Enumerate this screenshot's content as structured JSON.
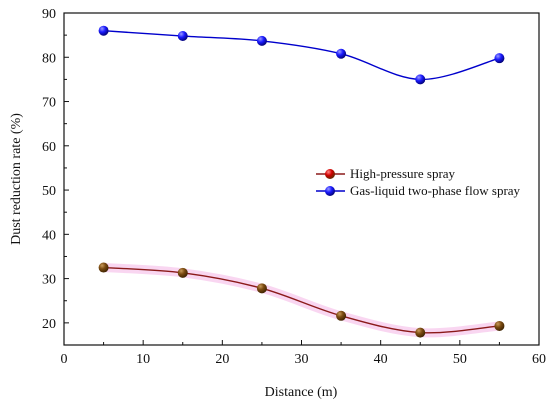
{
  "chart_data": {
    "type": "line",
    "xlabel": "Distance (m)",
    "ylabel": "Dust reduction rate (%)",
    "xlim": [
      0,
      60
    ],
    "ylim": [
      15,
      90
    ],
    "x_ticks": [
      0,
      10,
      20,
      30,
      40,
      50,
      60
    ],
    "y_ticks": [
      20,
      30,
      40,
      50,
      60,
      70,
      80,
      90
    ],
    "x_tick_labels": [
      "0",
      "10",
      "20",
      "30",
      "40",
      "50",
      "60"
    ],
    "y_tick_labels": [
      "20",
      "30",
      "40",
      "50",
      "60",
      "70",
      "80",
      "90"
    ],
    "grid": false,
    "legend_position": "right-middle",
    "series": [
      {
        "name": "High-pressure spray",
        "color": "#8b1a1a",
        "marker_color": "#d40000",
        "marker_bottom_color": "#5a3a00",
        "x": [
          5,
          15,
          25,
          35,
          45,
          55
        ],
        "values": [
          32.5,
          31.3,
          27.8,
          21.6,
          17.8,
          19.3
        ]
      },
      {
        "name": "Gas-liquid two-phase flow spray",
        "color": "#0000cc",
        "marker_color": "#1a1aff",
        "marker_bottom_color": "#0000aa",
        "x": [
          5,
          15,
          25,
          35,
          45,
          55
        ],
        "values": [
          86.0,
          84.8,
          83.7,
          80.8,
          75.0,
          79.8
        ]
      }
    ]
  }
}
